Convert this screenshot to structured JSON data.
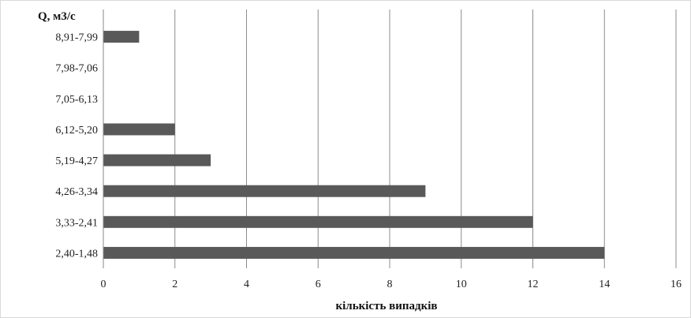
{
  "chart_data": {
    "type": "bar",
    "orientation": "horizontal",
    "categories": [
      "2,40-1,48",
      "3,33-2,41",
      "4,26-3,34",
      "5,19-4,27",
      "6,12-5,20",
      "7,05-6,13",
      "7,98-7,06",
      "8,91-7,99"
    ],
    "values": [
      14,
      12,
      9,
      3,
      2,
      0,
      0,
      1
    ],
    "xlabel": "кількість випадків",
    "ylabel": "Q, м3/с",
    "xlim": [
      0,
      16
    ],
    "xticks": [
      0,
      2,
      4,
      6,
      8,
      10,
      12,
      14,
      16
    ],
    "grid": true,
    "bar_color": "#595959"
  }
}
